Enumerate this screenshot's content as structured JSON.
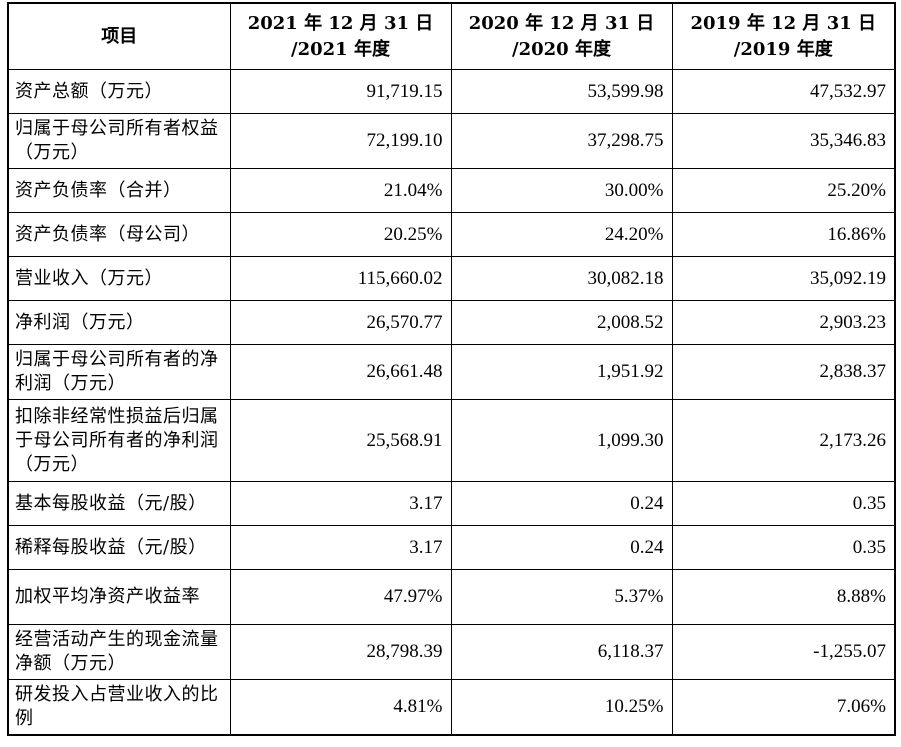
{
  "table": {
    "headers": [
      "项目",
      "2021 年 12 月 31 日\n/2021 年度",
      "2020 年 12 月 31 日\n/2020 年度",
      "2019 年 12 月 31 日\n/2019 年度"
    ],
    "rows": [
      {
        "label": "资产总额（万元）",
        "v2021": "91,719.15",
        "v2020": "53,599.98",
        "v2019": "47,532.97"
      },
      {
        "label": "归属于母公司所有者权益（万元）",
        "v2021": "72,199.10",
        "v2020": "37,298.75",
        "v2019": "35,346.83"
      },
      {
        "label": "资产负债率（合并）",
        "v2021": "21.04%",
        "v2020": "30.00%",
        "v2019": "25.20%"
      },
      {
        "label": "资产负债率（母公司）",
        "v2021": "20.25%",
        "v2020": "24.20%",
        "v2019": "16.86%"
      },
      {
        "label": "营业收入（万元）",
        "v2021": "115,660.02",
        "v2020": "30,082.18",
        "v2019": "35,092.19"
      },
      {
        "label": "净利润（万元）",
        "v2021": "26,570.77",
        "v2020": "2,008.52",
        "v2019": "2,903.23"
      },
      {
        "label": "归属于母公司所有者的净利润（万元）",
        "v2021": "26,661.48",
        "v2020": "1,951.92",
        "v2019": "2,838.37"
      },
      {
        "label": "扣除非经常性损益后归属于母公司所有者的净利润（万元）",
        "v2021": "25,568.91",
        "v2020": "1,099.30",
        "v2019": "2,173.26"
      },
      {
        "label": "基本每股收益（元/股）",
        "v2021": "3.17",
        "v2020": "0.24",
        "v2019": "0.35"
      },
      {
        "label": "稀释每股收益（元/股）",
        "v2021": "3.17",
        "v2020": "0.24",
        "v2019": "0.35"
      },
      {
        "label": "加权平均净资产收益率",
        "v2021": "47.97%",
        "v2020": "5.37%",
        "v2019": "8.88%"
      },
      {
        "label": "经营活动产生的现金流量净额（万元）",
        "v2021": "28,798.39",
        "v2020": "6,118.37",
        "v2019": "-1,255.07"
      },
      {
        "label": "研发投入占营业收入的比例",
        "v2021": "4.81%",
        "v2020": "10.25%",
        "v2019": "7.06%"
      }
    ]
  }
}
